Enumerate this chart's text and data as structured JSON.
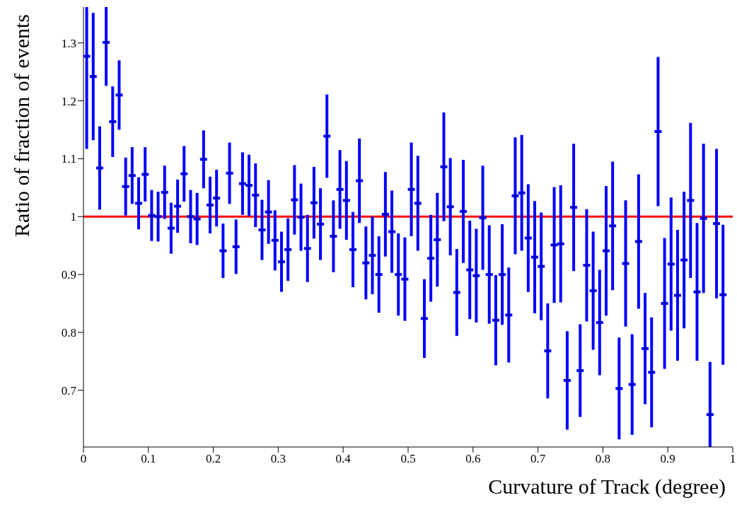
{
  "chart_data": {
    "type": "scatter",
    "xlabel": "Curvature of Track (degree)",
    "ylabel": "Ratio of fraction of events",
    "xlim": [
      0,
      1
    ],
    "xticks": [
      0,
      0.1,
      0.2,
      0.3,
      0.4,
      0.5,
      0.6,
      0.7,
      0.8,
      0.9,
      1
    ],
    "ylim": [
      0.602,
      1.362
    ],
    "yticks": [
      0.7,
      0.8,
      0.9,
      1,
      1.1,
      1.2,
      1.3
    ],
    "x": [
      0.005,
      0.015,
      0.025,
      0.035,
      0.045,
      0.055,
      0.065,
      0.075,
      0.085,
      0.095,
      0.105,
      0.115,
      0.125,
      0.135,
      0.145,
      0.155,
      0.165,
      0.175,
      0.185,
      0.195,
      0.205,
      0.215,
      0.225,
      0.235,
      0.245,
      0.255,
      0.265,
      0.275,
      0.285,
      0.295,
      0.305,
      0.315,
      0.325,
      0.335,
      0.345,
      0.355,
      0.365,
      0.375,
      0.385,
      0.395,
      0.405,
      0.415,
      0.425,
      0.435,
      0.445,
      0.455,
      0.465,
      0.475,
      0.485,
      0.495,
      0.505,
      0.515,
      0.525,
      0.535,
      0.545,
      0.555,
      0.565,
      0.575,
      0.585,
      0.595,
      0.605,
      0.615,
      0.625,
      0.635,
      0.645,
      0.655,
      0.665,
      0.675,
      0.685,
      0.695,
      0.705,
      0.715,
      0.725,
      0.735,
      0.745,
      0.755,
      0.765,
      0.775,
      0.785,
      0.795,
      0.805,
      0.815,
      0.825,
      0.835,
      0.845,
      0.855,
      0.865,
      0.875,
      0.885,
      0.895,
      0.905,
      0.915,
      0.925,
      0.935,
      0.945,
      0.955,
      0.965,
      0.975,
      0.985
    ],
    "series": [
      {
        "color": "#0000ff",
        "values": [
          1.277,
          1.242,
          1.084,
          1.301,
          1.164,
          1.21,
          1.052,
          1.071,
          1.023,
          1.073,
          1.002,
          1.0,
          1.042,
          0.98,
          1.018,
          1.074,
          1.0,
          0.996,
          1.099,
          1.02,
          1.032,
          0.941,
          1.075,
          0.948,
          1.057,
          1.054,
          1.037,
          0.977,
          1.008,
          0.959,
          0.922,
          0.943,
          1.029,
          0.999,
          0.945,
          1.024,
          0.987,
          1.139,
          0.966,
          1.047,
          1.028,
          0.943,
          1.062,
          0.92,
          0.933,
          0.9,
          1.004,
          0.974,
          0.9,
          0.892,
          1.047,
          1.023,
          0.824,
          0.928,
          0.96,
          1.086,
          1.017,
          0.869,
          1.009,
          0.908,
          0.898,
          0.998,
          0.9,
          0.821,
          0.9,
          0.83,
          1.036,
          1.041,
          0.963,
          0.93,
          0.914,
          0.768,
          0.951,
          0.953,
          0.717,
          1.016,
          0.734,
          0.916,
          0.872,
          0.817,
          0.941,
          0.984,
          0.703,
          0.919,
          0.71,
          0.957,
          0.772,
          0.731,
          1.147,
          0.85,
          0.918,
          0.864,
          0.925,
          1.028,
          0.87,
          0.997,
          0.658,
          0.988,
          0.865
        ],
        "errors": [
          [
            1.117,
            1.362
          ],
          0.11,
          0.072,
          [
            1.226,
            1.362
          ],
          0.061,
          0.06,
          0.05,
          0.049,
          0.045,
          0.047,
          0.044,
          0.043,
          0.046,
          0.044,
          0.046,
          0.048,
          0.046,
          0.045,
          0.05,
          0.049,
          0.049,
          0.047,
          0.053,
          0.047,
          0.054,
          0.053,
          0.055,
          0.052,
          0.055,
          0.052,
          0.052,
          0.054,
          0.06,
          0.058,
          0.058,
          0.062,
          0.062,
          0.072,
          0.062,
          0.068,
          0.068,
          0.065,
          0.073,
          0.063,
          0.067,
          0.066,
          0.073,
          0.071,
          0.071,
          0.072,
          0.081,
          0.082,
          0.068,
          0.075,
          0.081,
          0.094,
          0.084,
          0.075,
          0.089,
          0.085,
          0.081,
          0.09,
          0.085,
          0.078,
          0.087,
          0.082,
          0.101,
          0.1,
          0.093,
          0.097,
          0.093,
          0.082,
          0.1,
          0.101,
          0.085,
          0.11,
          0.08,
          0.097,
          0.102,
          0.091,
          0.112,
          0.111,
          0.088,
          0.109,
          0.087,
          0.116,
          0.096,
          0.095,
          0.129,
          0.113,
          0.115,
          0.113,
          0.118,
          0.134,
          0.119,
          0.129,
          [
            0.602,
            0.749
          ],
          0.129,
          0.121
        ]
      }
    ],
    "ref_lines": [
      {
        "axis": "y",
        "value": 1,
        "color": "#ff0000"
      }
    ]
  }
}
